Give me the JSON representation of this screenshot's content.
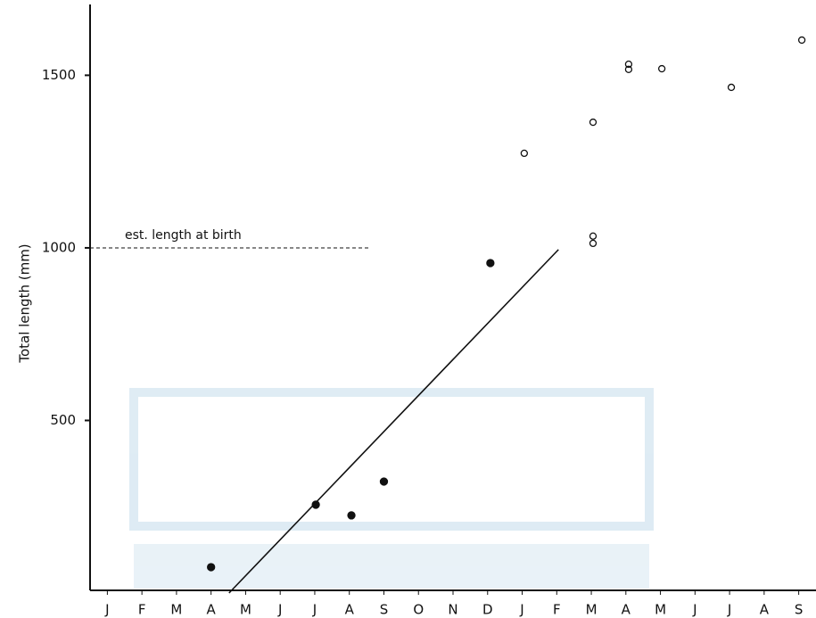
{
  "chart_data": {
    "type": "scatter",
    "y_label": "Total length (mm)",
    "xlim": [
      -0.5,
      20.5
    ],
    "ylim": [
      0,
      1700
    ],
    "yticks": [
      500,
      1000,
      1500
    ],
    "xticks": [
      {
        "value": 0,
        "label": "J"
      },
      {
        "value": 1,
        "label": "F"
      },
      {
        "value": 2,
        "label": "M"
      },
      {
        "value": 3,
        "label": "A"
      },
      {
        "value": 4,
        "label": "M"
      },
      {
        "value": 5,
        "label": "J"
      },
      {
        "value": 6,
        "label": "J"
      },
      {
        "value": 7,
        "label": "A"
      },
      {
        "value": 8,
        "label": "S"
      },
      {
        "value": 9,
        "label": "O"
      },
      {
        "value": 10,
        "label": "N"
      },
      {
        "value": 11,
        "label": "D"
      },
      {
        "value": 12,
        "label": "J"
      },
      {
        "value": 13,
        "label": "F"
      },
      {
        "value": 14,
        "label": "M"
      },
      {
        "value": 15,
        "label": "A"
      },
      {
        "value": 16,
        "label": "M"
      },
      {
        "value": 17,
        "label": "J"
      },
      {
        "value": 18,
        "label": "J"
      },
      {
        "value": 19,
        "label": "A"
      },
      {
        "value": 20,
        "label": "S"
      }
    ],
    "series": [
      {
        "marker": "filled",
        "color": "#111111",
        "x": [
          3.0,
          6.03,
          7.06,
          8.0,
          11.08
        ],
        "values": [
          75,
          256,
          225,
          323,
          956
        ]
      },
      {
        "marker": "open",
        "color": "#111111",
        "x": [
          12.06,
          14.05,
          14.05,
          14.05,
          15.08,
          15.08,
          16.04,
          18.05,
          20.09
        ],
        "values": [
          1274,
          1364,
          1034,
          1013,
          1532,
          1517,
          1519,
          1465,
          1602
        ]
      },
      {
        "marker": "line",
        "color": "#111111",
        "x": [
          3.52,
          13.05
        ],
        "values": [
          0,
          995
        ]
      }
    ],
    "annotation": {
      "text": "est. length at birth",
      "y": 1000,
      "x_end": 7.6
    }
  }
}
